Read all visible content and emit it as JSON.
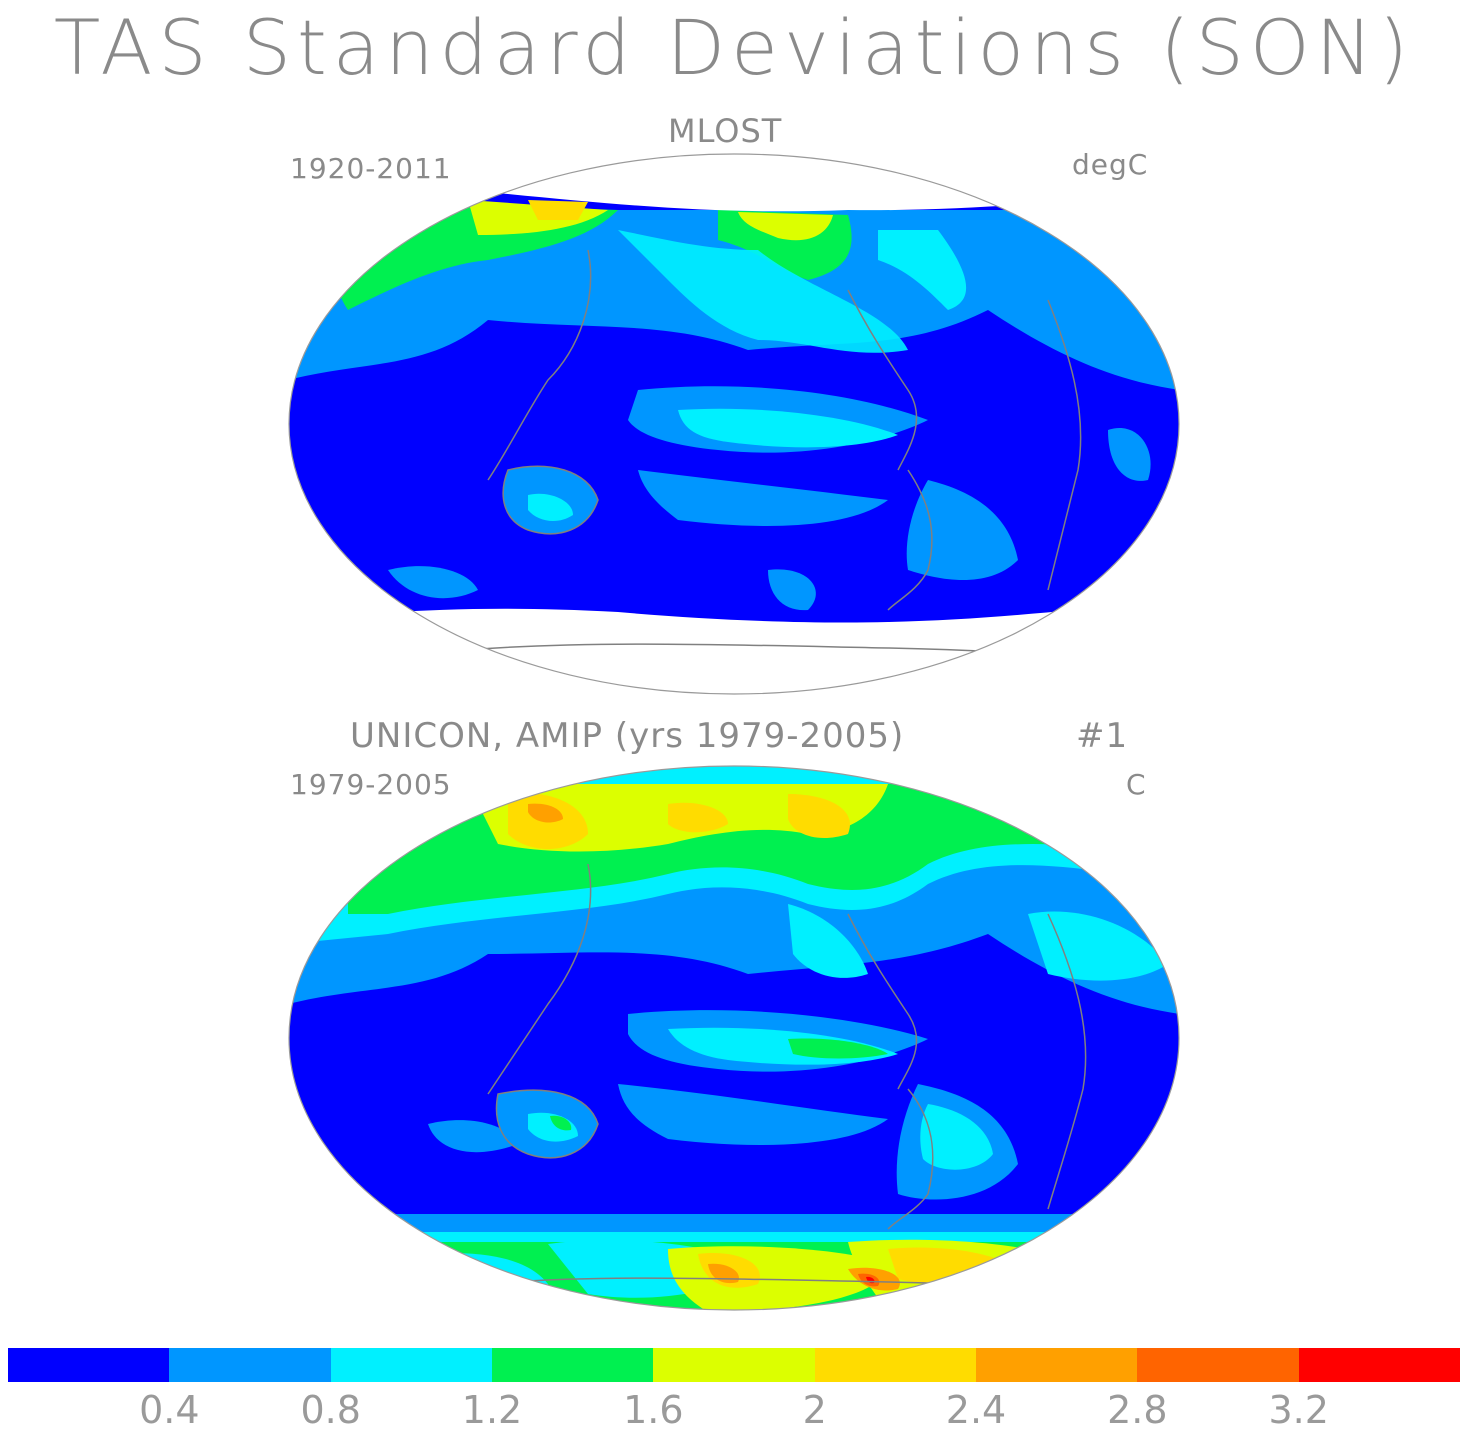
{
  "title": "TAS Standard Deviations (SON)",
  "panels": [
    {
      "title": "MLOST",
      "left_label": "1920-2011",
      "right_label": "degC"
    },
    {
      "title": "UNICON, AMIP (yrs 1979-2005)",
      "run_label": "#1",
      "left_label": "1979-2005",
      "right_label": "C"
    }
  ],
  "colorbar": {
    "colors": [
      "#0000ff",
      "#0096ff",
      "#00f0ff",
      "#00f050",
      "#dcff00",
      "#ffdc00",
      "#ffa000",
      "#ff6400",
      "#ff0000"
    ],
    "tick_labels": [
      "0.4",
      "0.8",
      "1.2",
      "1.6",
      "2",
      "2.4",
      "2.8",
      "3.2"
    ]
  },
  "colors": {
    "ocean_low": "#0000ff",
    "mid": "#0096ff",
    "cyan": "#00f0ff",
    "green": "#00f050",
    "yellow": "#dcff00",
    "gold": "#ffdc00",
    "orange": "#ffa000",
    "red": "#ff0000",
    "coast": "#808080"
  }
}
